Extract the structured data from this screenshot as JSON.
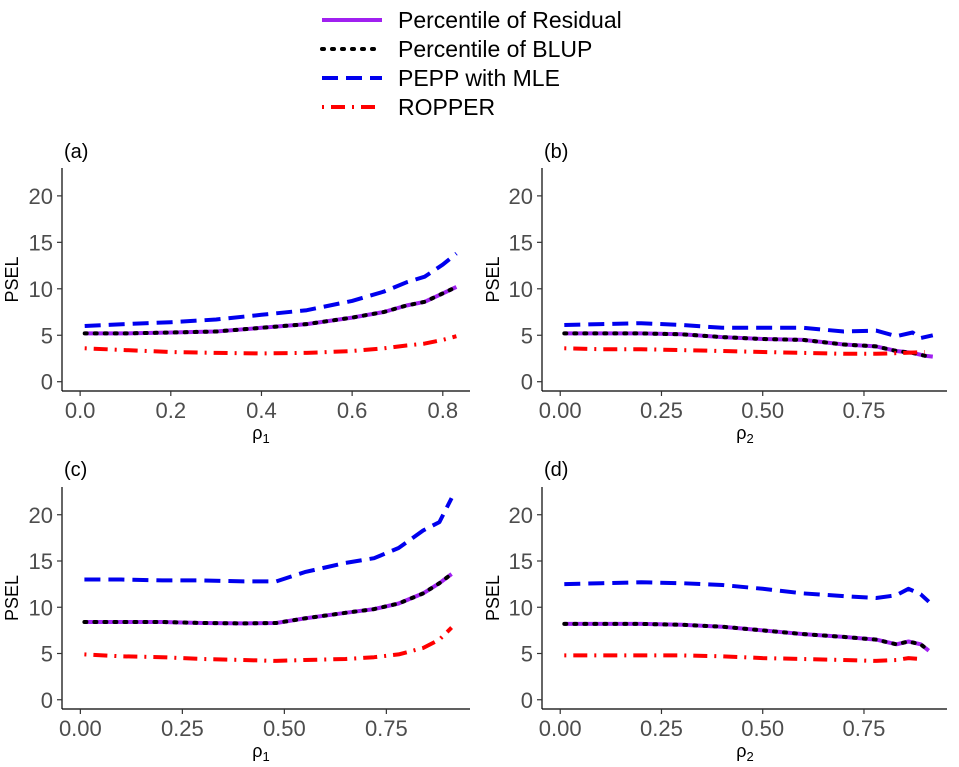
{
  "legend": {
    "entries": [
      {
        "name": "Percentile of Residual",
        "color": "#a020f0",
        "dash": "solid"
      },
      {
        "name": "Percentile of BLUP",
        "color": "#000000",
        "dash": "dotted"
      },
      {
        "name": "PEPP with MLE",
        "color": "#0000ee",
        "dash": "dashed"
      },
      {
        "name": "ROPPER",
        "color": "#ff0000",
        "dash": "dotdash"
      }
    ]
  },
  "chart_data": [
    {
      "type": "line",
      "tag": "(a)",
      "xlabel": "ρ",
      "xsub": "1",
      "ylabel": "PSEL",
      "xlim": [
        -0.04,
        0.86
      ],
      "ylim": [
        -1.0,
        23.0
      ],
      "xticks": [
        0.0,
        0.2,
        0.4,
        0.6,
        0.8
      ],
      "xtick_labels": [
        "0.0",
        "0.2",
        "0.4",
        "0.6",
        "0.8"
      ],
      "yticks": [
        0,
        5,
        10,
        15,
        20
      ],
      "ytick_labels": [
        "0",
        "5",
        "10",
        "15",
        "20"
      ],
      "series": [
        {
          "name": "Percentile of Residual",
          "x": [
            0.01,
            0.1,
            0.2,
            0.3,
            0.4,
            0.5,
            0.6,
            0.67,
            0.72,
            0.76,
            0.8,
            0.83
          ],
          "y": [
            5.2,
            5.2,
            5.3,
            5.4,
            5.8,
            6.2,
            6.9,
            7.5,
            8.2,
            8.6,
            9.5,
            10.2
          ]
        },
        {
          "name": "Percentile of BLUP",
          "x": [
            0.01,
            0.1,
            0.2,
            0.3,
            0.4,
            0.5,
            0.6,
            0.67,
            0.72,
            0.76,
            0.8,
            0.83
          ],
          "y": [
            5.2,
            5.2,
            5.3,
            5.4,
            5.8,
            6.2,
            6.9,
            7.5,
            8.2,
            8.6,
            9.5,
            10.2
          ]
        },
        {
          "name": "PEPP with MLE",
          "x": [
            0.01,
            0.1,
            0.2,
            0.3,
            0.4,
            0.5,
            0.6,
            0.67,
            0.72,
            0.76,
            0.8,
            0.83
          ],
          "y": [
            6.0,
            6.2,
            6.4,
            6.7,
            7.2,
            7.7,
            8.7,
            9.7,
            10.7,
            11.3,
            12.6,
            13.8
          ]
        },
        {
          "name": "ROPPER",
          "x": [
            0.01,
            0.1,
            0.2,
            0.3,
            0.4,
            0.5,
            0.6,
            0.67,
            0.72,
            0.76,
            0.8,
            0.83
          ],
          "y": [
            3.6,
            3.4,
            3.2,
            3.1,
            3.05,
            3.1,
            3.3,
            3.6,
            3.9,
            4.1,
            4.5,
            4.9
          ]
        }
      ]
    },
    {
      "type": "line",
      "tag": "(b)",
      "xlabel": "ρ",
      "xsub": "2",
      "ylabel": "PSEL",
      "xlim": [
        -0.045,
        0.955
      ],
      "ylim": [
        -1.0,
        23.0
      ],
      "xticks": [
        0.0,
        0.25,
        0.5,
        0.75
      ],
      "xtick_labels": [
        "0.00",
        "0.25",
        "0.50",
        "0.75"
      ],
      "yticks": [
        0,
        5,
        10,
        15,
        20
      ],
      "ytick_labels": [
        "0",
        "5",
        "10",
        "15",
        "20"
      ],
      "series": [
        {
          "name": "Percentile of Residual",
          "x": [
            0.01,
            0.1,
            0.2,
            0.3,
            0.4,
            0.5,
            0.6,
            0.7,
            0.78,
            0.83,
            0.87,
            0.9,
            0.92
          ],
          "y": [
            5.2,
            5.2,
            5.2,
            5.1,
            4.8,
            4.6,
            4.5,
            4.0,
            3.8,
            3.3,
            3.1,
            2.8,
            2.7
          ]
        },
        {
          "name": "Percentile of BLUP",
          "x": [
            0.01,
            0.1,
            0.2,
            0.3,
            0.4,
            0.5,
            0.6,
            0.7,
            0.78,
            0.83,
            0.87,
            0.9,
            0.92
          ],
          "y": [
            5.2,
            5.2,
            5.2,
            5.1,
            4.8,
            4.6,
            4.5,
            4.0,
            3.8,
            3.3,
            3.1,
            2.8,
            2.7
          ]
        },
        {
          "name": "PEPP with MLE",
          "x": [
            0.01,
            0.1,
            0.2,
            0.3,
            0.4,
            0.5,
            0.6,
            0.7,
            0.78,
            0.83,
            0.87,
            0.89,
            0.92
          ],
          "y": [
            6.1,
            6.2,
            6.3,
            6.1,
            5.8,
            5.8,
            5.8,
            5.4,
            5.5,
            4.9,
            5.3,
            4.7,
            5.0
          ]
        },
        {
          "name": "ROPPER",
          "x": [
            0.01,
            0.1,
            0.2,
            0.3,
            0.4,
            0.5,
            0.6,
            0.7,
            0.78,
            0.85,
            0.9
          ],
          "y": [
            3.6,
            3.5,
            3.5,
            3.4,
            3.3,
            3.2,
            3.1,
            3.0,
            3.0,
            3.1,
            3.2
          ]
        }
      ]
    },
    {
      "type": "line",
      "tag": "(c)",
      "xlabel": "ρ",
      "xsub": "1",
      "ylabel": "PSEL",
      "xlim": [
        -0.045,
        0.955
      ],
      "ylim": [
        -1.0,
        23.0
      ],
      "xticks": [
        0.0,
        0.25,
        0.5,
        0.75
      ],
      "xtick_labels": [
        "0.00",
        "0.25",
        "0.50",
        "0.75"
      ],
      "yticks": [
        0,
        5,
        10,
        15,
        20
      ],
      "ytick_labels": [
        "0",
        "5",
        "10",
        "15",
        "20"
      ],
      "series": [
        {
          "name": "Percentile of Residual",
          "x": [
            0.01,
            0.1,
            0.2,
            0.3,
            0.4,
            0.48,
            0.55,
            0.65,
            0.72,
            0.78,
            0.84,
            0.88,
            0.91
          ],
          "y": [
            8.4,
            8.4,
            8.4,
            8.3,
            8.25,
            8.3,
            8.8,
            9.4,
            9.8,
            10.4,
            11.5,
            12.6,
            13.6
          ]
        },
        {
          "name": "Percentile of BLUP",
          "x": [
            0.01,
            0.1,
            0.2,
            0.3,
            0.4,
            0.48,
            0.55,
            0.65,
            0.72,
            0.78,
            0.84,
            0.88,
            0.91
          ],
          "y": [
            8.4,
            8.4,
            8.4,
            8.3,
            8.25,
            8.3,
            8.8,
            9.4,
            9.8,
            10.4,
            11.5,
            12.6,
            13.6
          ]
        },
        {
          "name": "PEPP with MLE",
          "x": [
            0.01,
            0.1,
            0.2,
            0.3,
            0.4,
            0.48,
            0.55,
            0.65,
            0.72,
            0.78,
            0.84,
            0.88,
            0.91
          ],
          "y": [
            13.0,
            13.0,
            12.9,
            12.9,
            12.8,
            12.8,
            13.8,
            14.8,
            15.3,
            16.4,
            18.3,
            19.2,
            21.8
          ]
        },
        {
          "name": "ROPPER",
          "x": [
            0.01,
            0.1,
            0.2,
            0.3,
            0.4,
            0.48,
            0.55,
            0.65,
            0.72,
            0.78,
            0.84,
            0.88,
            0.91
          ],
          "y": [
            4.9,
            4.7,
            4.6,
            4.4,
            4.3,
            4.2,
            4.3,
            4.4,
            4.6,
            4.9,
            5.6,
            6.5,
            7.8
          ]
        }
      ]
    },
    {
      "type": "line",
      "tag": "(d)",
      "xlabel": "ρ",
      "xsub": "2",
      "ylabel": "PSEL",
      "xlim": [
        -0.045,
        0.955
      ],
      "ylim": [
        -1.0,
        23.0
      ],
      "xticks": [
        0.0,
        0.25,
        0.5,
        0.75
      ],
      "xtick_labels": [
        "0.00",
        "0.25",
        "0.50",
        "0.75"
      ],
      "yticks": [
        0,
        5,
        10,
        15,
        20
      ],
      "ytick_labels": [
        "0",
        "5",
        "10",
        "15",
        "20"
      ],
      "series": [
        {
          "name": "Percentile of Residual",
          "x": [
            0.01,
            0.1,
            0.2,
            0.3,
            0.4,
            0.5,
            0.6,
            0.7,
            0.78,
            0.83,
            0.86,
            0.89,
            0.91
          ],
          "y": [
            8.2,
            8.2,
            8.2,
            8.1,
            7.9,
            7.5,
            7.1,
            6.8,
            6.5,
            6.0,
            6.3,
            6.0,
            5.3
          ]
        },
        {
          "name": "Percentile of BLUP",
          "x": [
            0.01,
            0.1,
            0.2,
            0.3,
            0.4,
            0.5,
            0.6,
            0.7,
            0.78,
            0.83,
            0.86,
            0.89,
            0.91
          ],
          "y": [
            8.2,
            8.2,
            8.2,
            8.1,
            7.9,
            7.5,
            7.1,
            6.8,
            6.5,
            6.0,
            6.3,
            6.0,
            5.3
          ]
        },
        {
          "name": "PEPP with MLE",
          "x": [
            0.01,
            0.1,
            0.2,
            0.3,
            0.4,
            0.5,
            0.6,
            0.7,
            0.78,
            0.83,
            0.86,
            0.89,
            0.91
          ],
          "y": [
            12.5,
            12.6,
            12.7,
            12.6,
            12.4,
            12.0,
            11.5,
            11.2,
            11.0,
            11.3,
            12.0,
            11.4,
            10.6
          ]
        },
        {
          "name": "ROPPER",
          "x": [
            0.01,
            0.1,
            0.2,
            0.3,
            0.4,
            0.5,
            0.6,
            0.7,
            0.78,
            0.83,
            0.86,
            0.89
          ],
          "y": [
            4.8,
            4.8,
            4.8,
            4.8,
            4.7,
            4.5,
            4.4,
            4.3,
            4.2,
            4.3,
            4.5,
            4.4
          ]
        }
      ]
    }
  ]
}
